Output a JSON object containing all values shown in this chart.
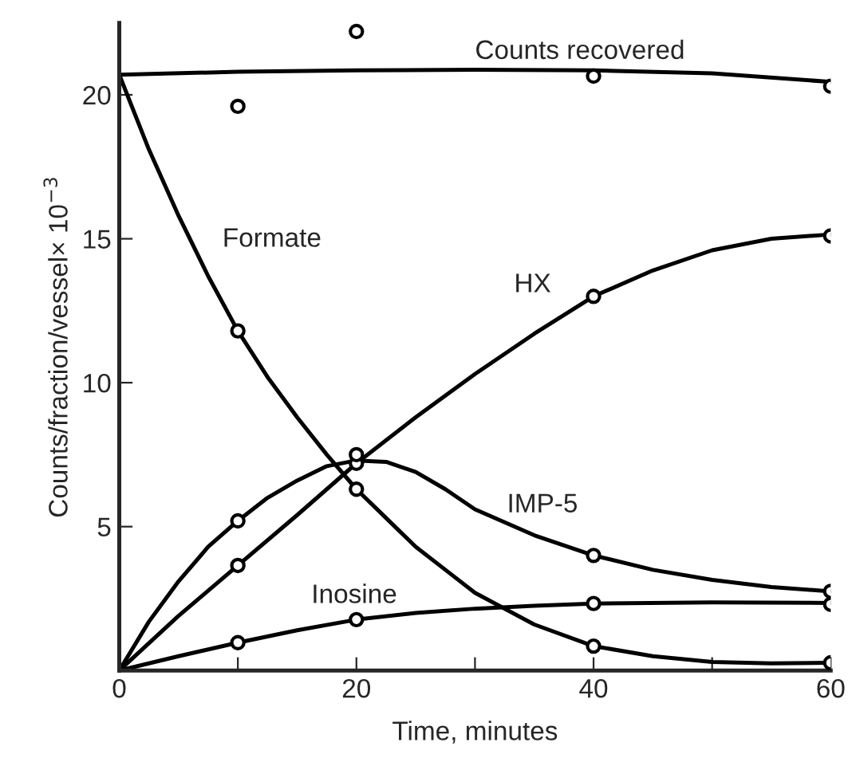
{
  "chart_data": {
    "type": "line",
    "xlabel": "Time, minutes",
    "ylabel": "Counts/fraction/vessel× 10$^{−3}$",
    "xlim": [
      0,
      60
    ],
    "ylim": [
      0,
      22.5
    ],
    "xticks": [
      0,
      {
        "value": 10,
        "label": null
      },
      20,
      {
        "value": 30,
        "label": null
      },
      40,
      {
        "value": 50,
        "label": null
      },
      60
    ],
    "yticks": [
      5,
      10,
      15,
      20
    ],
    "grid": false,
    "legend": false,
    "series": [
      {
        "color": "#000000",
        "x": [
          0,
          10,
          20,
          30,
          40,
          50,
          60
        ],
        "values": [
          20.7,
          20.8,
          20.85,
          20.87,
          20.85,
          20.75,
          20.45
        ]
      },
      {
        "type": "scatter",
        "color": "#000000",
        "marker": "circle",
        "x": [
          10,
          20,
          40,
          60
        ],
        "values": [
          19.6,
          22.2,
          20.65,
          20.3
        ]
      },
      {
        "color": "#000000",
        "x": [
          0,
          2.5,
          5,
          7.5,
          10,
          12.5,
          15,
          17.5,
          20,
          22.5,
          25,
          27.5,
          30,
          35,
          40,
          45,
          50,
          55,
          60
        ],
        "values": [
          20.7,
          18.1,
          15.8,
          13.7,
          11.8,
          10.2,
          8.8,
          7.5,
          6.3,
          5.3,
          4.3,
          3.5,
          2.7,
          1.6,
          0.85,
          0.5,
          0.3,
          0.25,
          0.27
        ]
      },
      {
        "type": "scatter",
        "color": "#000000",
        "marker": "circle",
        "x": [
          10,
          20,
          40,
          60
        ],
        "values": [
          11.8,
          6.3,
          0.85,
          0.27
        ]
      },
      {
        "color": "#000000",
        "x": [
          0,
          5,
          10,
          15,
          20,
          25,
          30,
          35,
          40,
          45,
          50,
          55,
          60
        ],
        "values": [
          0,
          1.9,
          3.65,
          5.4,
          7.2,
          8.8,
          10.3,
          11.7,
          13.0,
          13.9,
          14.6,
          15.0,
          15.15
        ]
      },
      {
        "type": "scatter",
        "color": "#000000",
        "marker": "circle",
        "x": [
          10,
          20,
          40,
          60
        ],
        "values": [
          3.65,
          7.2,
          13.0,
          15.1
        ]
      },
      {
        "color": "#000000",
        "x": [
          0,
          2.5,
          5,
          7.5,
          10,
          12.5,
          15,
          17.5,
          20,
          22.5,
          25,
          27.5,
          30,
          35,
          40,
          45,
          50,
          55,
          60
        ],
        "values": [
          0,
          1.7,
          3.1,
          4.3,
          5.2,
          6.0,
          6.6,
          7.1,
          7.3,
          7.25,
          6.9,
          6.3,
          5.6,
          4.7,
          4.0,
          3.5,
          3.15,
          2.9,
          2.75
        ]
      },
      {
        "type": "scatter",
        "color": "#000000",
        "marker": "circle",
        "x": [
          10,
          20,
          40,
          60
        ],
        "values": [
          5.2,
          7.5,
          4.0,
          2.75
        ]
      },
      {
        "color": "#000000",
        "x": [
          0,
          5,
          10,
          15,
          20,
          25,
          30,
          35,
          40,
          50,
          60
        ],
        "values": [
          0,
          0.5,
          0.97,
          1.4,
          1.77,
          2.0,
          2.15,
          2.25,
          2.33,
          2.37,
          2.35
        ]
      },
      {
        "type": "scatter",
        "color": "#000000",
        "marker": "circle",
        "x": [
          10,
          20,
          40,
          60
        ],
        "values": [
          0.97,
          1.77,
          2.33,
          2.3
        ]
      }
    ],
    "annotations": [
      "Counts recovered",
      "Formate",
      "HX",
      "IMP-5",
      "Inosine"
    ]
  }
}
